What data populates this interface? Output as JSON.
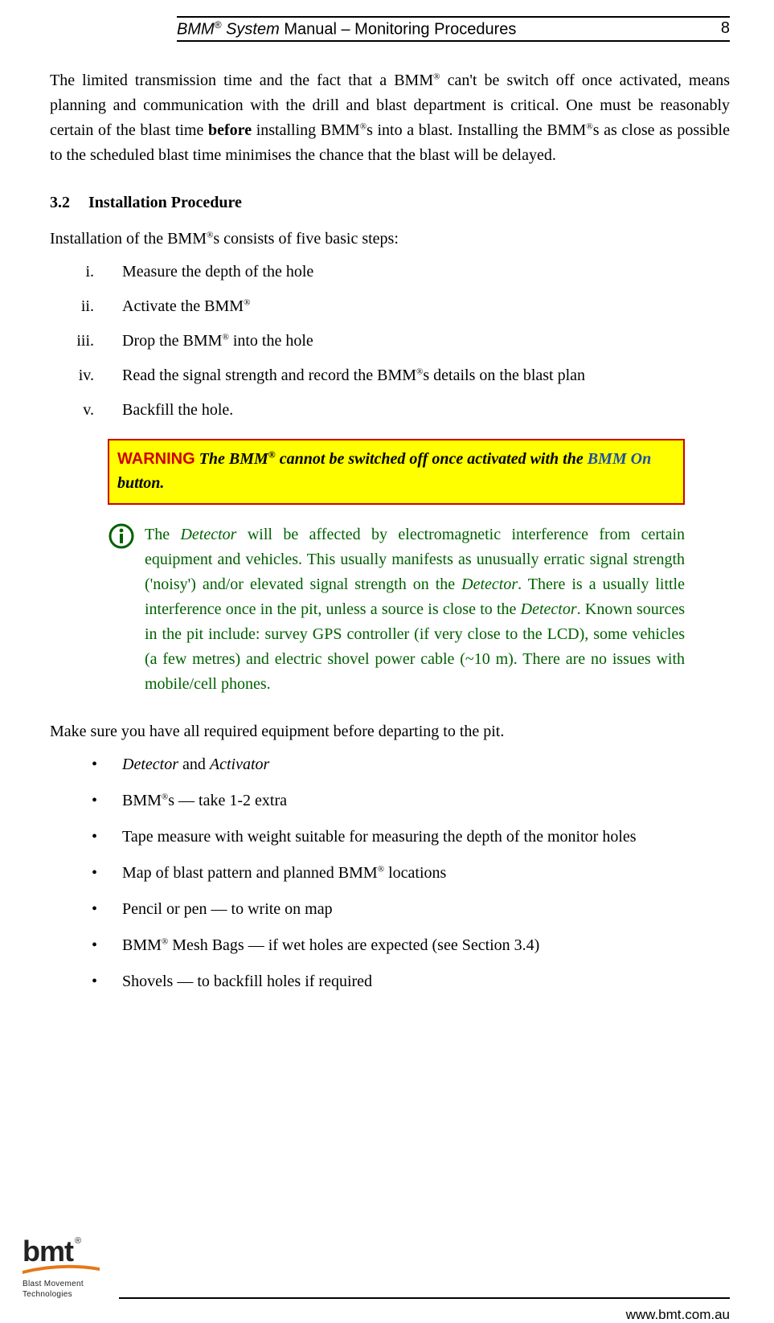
{
  "header": {
    "title_prefix_italic": "BMM",
    "title_reg": "®",
    "title_italic_2": " System",
    "title_plain": " Manual – Monitoring Procedures",
    "page_number": "8"
  },
  "intro_paragraph_html": "The limited transmission time and the fact that a BMM<sup class=\"reg\">®</sup> can't be switch off once activated, means planning and communication with the drill and blast department is critical. One must be reasonably certain of the blast time <b>before</b> installing BMM<sup class=\"reg\">®</sup>s into a blast. Installing the BMM<sup class=\"reg\">®</sup>s as close as possible to the scheduled blast time minimises the chance that the blast will be delayed.",
  "section": {
    "number": "3.2",
    "title": "Installation Procedure"
  },
  "intro_line_html": "Installation of the BMM<sup class=\"reg\">®</sup>s consists of five basic steps:",
  "roman_list": [
    {
      "num": "i.",
      "html": "Measure the depth of the hole"
    },
    {
      "num": "ii.",
      "html": "Activate the BMM<sup class=\"reg\">®</sup>"
    },
    {
      "num": "iii.",
      "html": "Drop the BMM<sup class=\"reg\">®</sup> into the hole"
    },
    {
      "num": "iv.",
      "html": "Read the signal strength and record the BMM<sup class=\"reg\">®</sup>s details on the blast plan"
    },
    {
      "num": "v.",
      "html": "Backfill the hole."
    }
  ],
  "warning": {
    "label": "WARNING",
    "text_html": "<span class=\"warning-text\">The BMM<sup class=\"reg\">®</sup> cannot be switched off once activated with the <span class=\"bmm-on\">BMM On</span> button.</span>"
  },
  "info_note_html": "The <span class=\"term\">Detector</span> will be affected by electromagnetic interference from certain equipment and vehicles. This usually manifests as unusually erratic signal strength ('noisy') and/or elevated signal strength on the <span class=\"term\">Detector</span>. There is a usually little interference once in the pit, unless a source is close to the <span class=\"term\">Detector</span>. Known sources in the pit include: survey GPS controller (if very close to the LCD), some vehicles (a few metres) and electric shovel power cable (~10 m). There are no issues with mobile/cell phones.",
  "equipment_intro": "Make sure you have all required equipment before departing to the pit.",
  "equipment_list": [
    "<span class=\"em\">Detector</span> and <span class=\"em\">Activator</span>",
    "BMM<sup class=\"reg\">®</sup>s — take 1-2 extra",
    "Tape measure with weight suitable for measuring the depth of the monitor holes",
    "Map of blast pattern and planned BMM<sup class=\"reg\">®</sup> locations",
    "Pencil or pen — to write on map",
    "BMM<sup class=\"reg\">®</sup> Mesh Bags — if wet holes are expected (see Section 3.4)",
    "Shovels — to backfill holes if required"
  ],
  "footer": {
    "url": "www.bmt.com.au",
    "logo_text": "bmt",
    "logo_line1": "Blast Movement",
    "logo_line2": "Technologies"
  },
  "colors": {
    "warning_border": "#cc0000",
    "warning_bg": "#ffff00",
    "warning_label": "#cc0000",
    "info_green": "#006000",
    "bmm_on_blue": "#1f4ea3",
    "swoosh": "#e67817"
  }
}
